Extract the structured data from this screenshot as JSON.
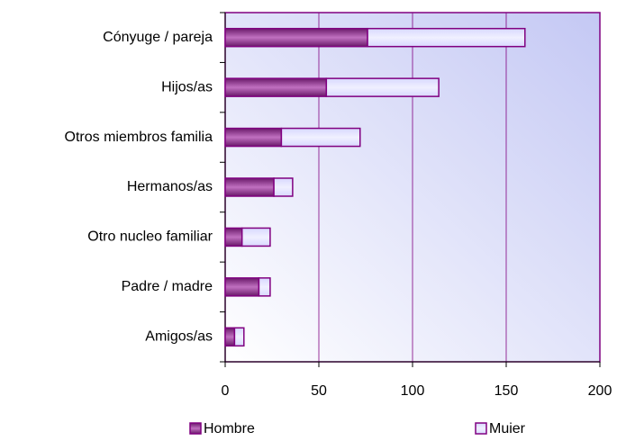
{
  "chart_data": {
    "type": "bar",
    "orientation": "horizontal",
    "stacked": true,
    "categories": [
      "Cónyuge / pareja",
      "Hijos/as",
      "Otros miembros familia",
      "Hermanos/as",
      "Otro nucleo familiar",
      "Padre / madre",
      "Amigos/as"
    ],
    "series": [
      {
        "name": "Hombre",
        "color": "#993399",
        "values": [
          76,
          54,
          30,
          26,
          9,
          18,
          5
        ]
      },
      {
        "name": "Muier",
        "color": "#ccccff",
        "values": [
          84,
          60,
          42,
          10,
          15,
          6,
          5
        ]
      }
    ],
    "xlim": [
      0,
      200
    ],
    "xticks": [
      0,
      50,
      100,
      150,
      200
    ],
    "grid": true,
    "legend": "bottom"
  }
}
